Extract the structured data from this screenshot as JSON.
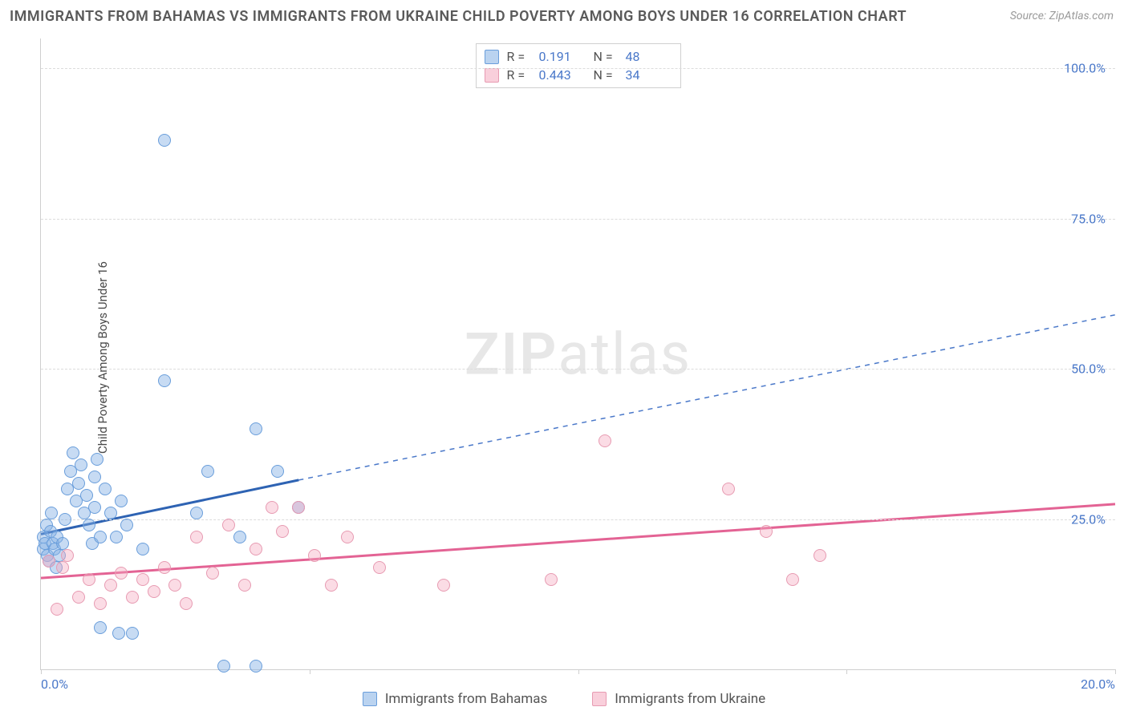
{
  "title": "IMMIGRANTS FROM BAHAMAS VS IMMIGRANTS FROM UKRAINE CHILD POVERTY AMONG BOYS UNDER 16 CORRELATION CHART",
  "source_prefix": "Source: ",
  "source_link": "ZipAtlas.com",
  "ylabel": "Child Poverty Among Boys Under 16",
  "watermark": "ZIPatlas",
  "chart": {
    "type": "scatter",
    "xlim": [
      0,
      20
    ],
    "ylim": [
      0,
      105
    ],
    "xticks": [
      0,
      5,
      10,
      15,
      20
    ],
    "xtick_labels": [
      "0.0%",
      "",
      "",
      "",
      "20.0%"
    ],
    "yticks": [
      25,
      50,
      75,
      100
    ],
    "ytick_labels": [
      "25.0%",
      "50.0%",
      "75.0%",
      "100.0%"
    ],
    "grid_color": "#dcdcdc",
    "axis_color": "#cfcfcf",
    "background": "#ffffff",
    "marker_size": 16,
    "series": [
      {
        "key": "bahamas",
        "label": "Immigrants from Bahamas",
        "marker_fill": "rgba(130,175,228,0.45)",
        "marker_stroke": "#6a9edb",
        "r": 0.191,
        "n": 48,
        "trend": {
          "solid": {
            "x1": 0.0,
            "y1": 22.5,
            "x2": 4.8,
            "y2": 31.5,
            "color": "#2e63b3",
            "width": 3
          },
          "dashed": {
            "x1": 4.8,
            "y1": 31.5,
            "x2": 20.0,
            "y2": 59.0,
            "color": "#4a78c9",
            "width": 1.5,
            "dash": "6,6"
          }
        },
        "points": [
          [
            0.05,
            20
          ],
          [
            0.05,
            22
          ],
          [
            0.08,
            21
          ],
          [
            0.1,
            24
          ],
          [
            0.12,
            19
          ],
          [
            0.15,
            18
          ],
          [
            0.18,
            23
          ],
          [
            0.2,
            26
          ],
          [
            0.22,
            21
          ],
          [
            0.25,
            20
          ],
          [
            0.28,
            17
          ],
          [
            0.3,
            22
          ],
          [
            0.35,
            19
          ],
          [
            0.4,
            21
          ],
          [
            0.45,
            25
          ],
          [
            0.5,
            30
          ],
          [
            0.55,
            33
          ],
          [
            0.6,
            36
          ],
          [
            0.65,
            28
          ],
          [
            0.7,
            31
          ],
          [
            0.75,
            34
          ],
          [
            0.8,
            26
          ],
          [
            0.85,
            29
          ],
          [
            0.9,
            24
          ],
          [
            0.95,
            21
          ],
          [
            1.0,
            27
          ],
          [
            1.0,
            32
          ],
          [
            1.05,
            35
          ],
          [
            1.1,
            22
          ],
          [
            1.1,
            7
          ],
          [
            1.2,
            30
          ],
          [
            1.3,
            26
          ],
          [
            1.4,
            22
          ],
          [
            1.45,
            6
          ],
          [
            1.5,
            28
          ],
          [
            1.6,
            24
          ],
          [
            1.7,
            6
          ],
          [
            1.9,
            20
          ],
          [
            2.3,
            88
          ],
          [
            2.3,
            48
          ],
          [
            2.9,
            26
          ],
          [
            3.1,
            33
          ],
          [
            3.4,
            0.5
          ],
          [
            3.7,
            22
          ],
          [
            4.0,
            0.5
          ],
          [
            4.0,
            40
          ],
          [
            4.4,
            33
          ],
          [
            4.8,
            27
          ]
        ]
      },
      {
        "key": "ukraine",
        "label": "Immigrants from Ukraine",
        "marker_fill": "rgba(244,168,190,0.40)",
        "marker_stroke": "#e79bb2",
        "r": 0.443,
        "n": 34,
        "trend": {
          "solid": {
            "x1": 0.0,
            "y1": 15.2,
            "x2": 20.0,
            "y2": 27.5,
            "color": "#e36394",
            "width": 3
          },
          "dashed": null
        },
        "points": [
          [
            0.15,
            18
          ],
          [
            0.3,
            10
          ],
          [
            0.4,
            17
          ],
          [
            0.5,
            19
          ],
          [
            0.7,
            12
          ],
          [
            0.9,
            15
          ],
          [
            1.1,
            11
          ],
          [
            1.3,
            14
          ],
          [
            1.5,
            16
          ],
          [
            1.7,
            12
          ],
          [
            1.9,
            15
          ],
          [
            2.1,
            13
          ],
          [
            2.3,
            17
          ],
          [
            2.5,
            14
          ],
          [
            2.7,
            11
          ],
          [
            2.9,
            22
          ],
          [
            3.2,
            16
          ],
          [
            3.5,
            24
          ],
          [
            3.8,
            14
          ],
          [
            4.0,
            20
          ],
          [
            4.3,
            27
          ],
          [
            4.5,
            23
          ],
          [
            4.8,
            27
          ],
          [
            5.1,
            19
          ],
          [
            5.4,
            14
          ],
          [
            5.7,
            22
          ],
          [
            6.3,
            17
          ],
          [
            7.5,
            14
          ],
          [
            9.5,
            15
          ],
          [
            10.5,
            38
          ],
          [
            12.8,
            30
          ],
          [
            13.5,
            23
          ],
          [
            14.0,
            15
          ],
          [
            14.5,
            19
          ]
        ]
      }
    ]
  },
  "legend_top": {
    "r_label": "R =",
    "n_label": "N ="
  }
}
